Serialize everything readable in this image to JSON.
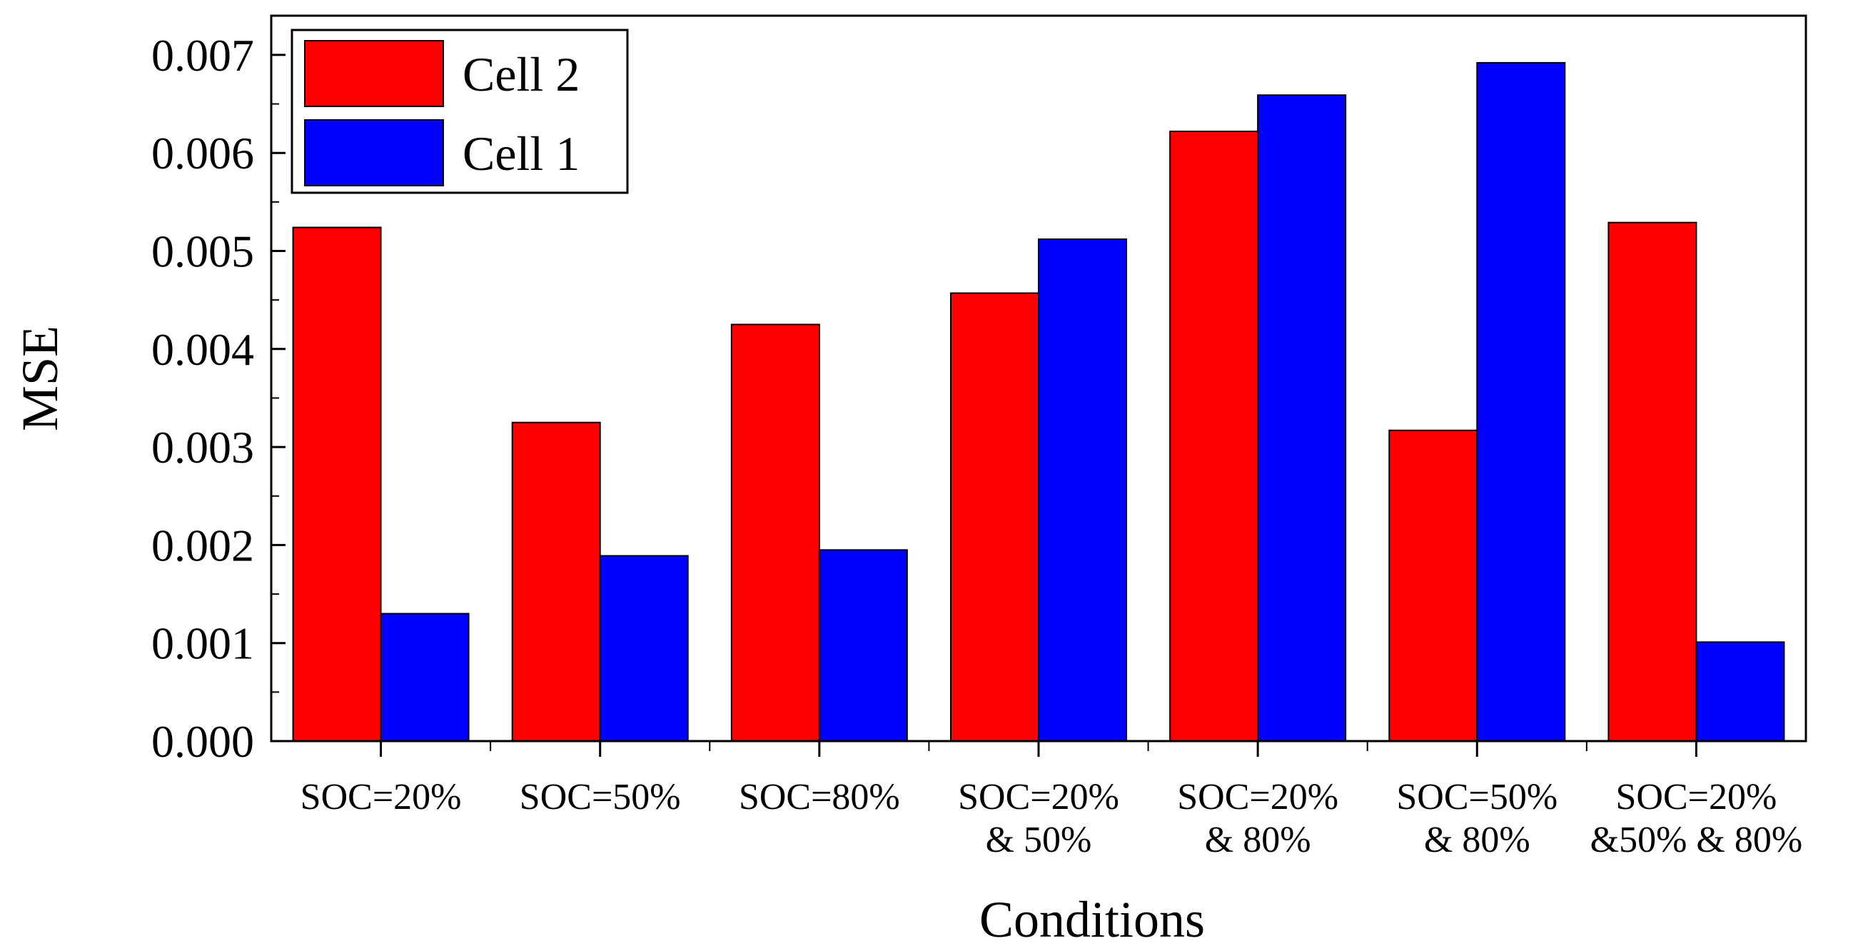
{
  "chart_data": {
    "type": "bar",
    "title": "",
    "xlabel": "Conditions",
    "ylabel": "MSE",
    "ylim": [
      0,
      0.0074
    ],
    "yticks": [
      "0.000",
      "0.001",
      "0.002",
      "0.003",
      "0.004",
      "0.005",
      "0.006",
      "0.007"
    ],
    "grid": false,
    "legend_position": "top-left",
    "categories": [
      [
        "SOC=20%"
      ],
      [
        "SOC=50%"
      ],
      [
        "SOC=80%"
      ],
      [
        "SOC=20%",
        "& 50%"
      ],
      [
        "SOC=20%",
        "& 80%"
      ],
      [
        "SOC=50%",
        "& 80%"
      ],
      [
        "SOC=20%",
        "&50% & 80%"
      ]
    ],
    "series": [
      {
        "name": "Cell 2",
        "color": "#ff0000",
        "values": [
          0.00524,
          0.00325,
          0.00425,
          0.00457,
          0.00622,
          0.00317,
          0.00529
        ]
      },
      {
        "name": "Cell 1",
        "color": "#0000ff",
        "values": [
          0.0013,
          0.00189,
          0.00195,
          0.00512,
          0.00659,
          0.00692,
          0.00101
        ]
      }
    ]
  }
}
